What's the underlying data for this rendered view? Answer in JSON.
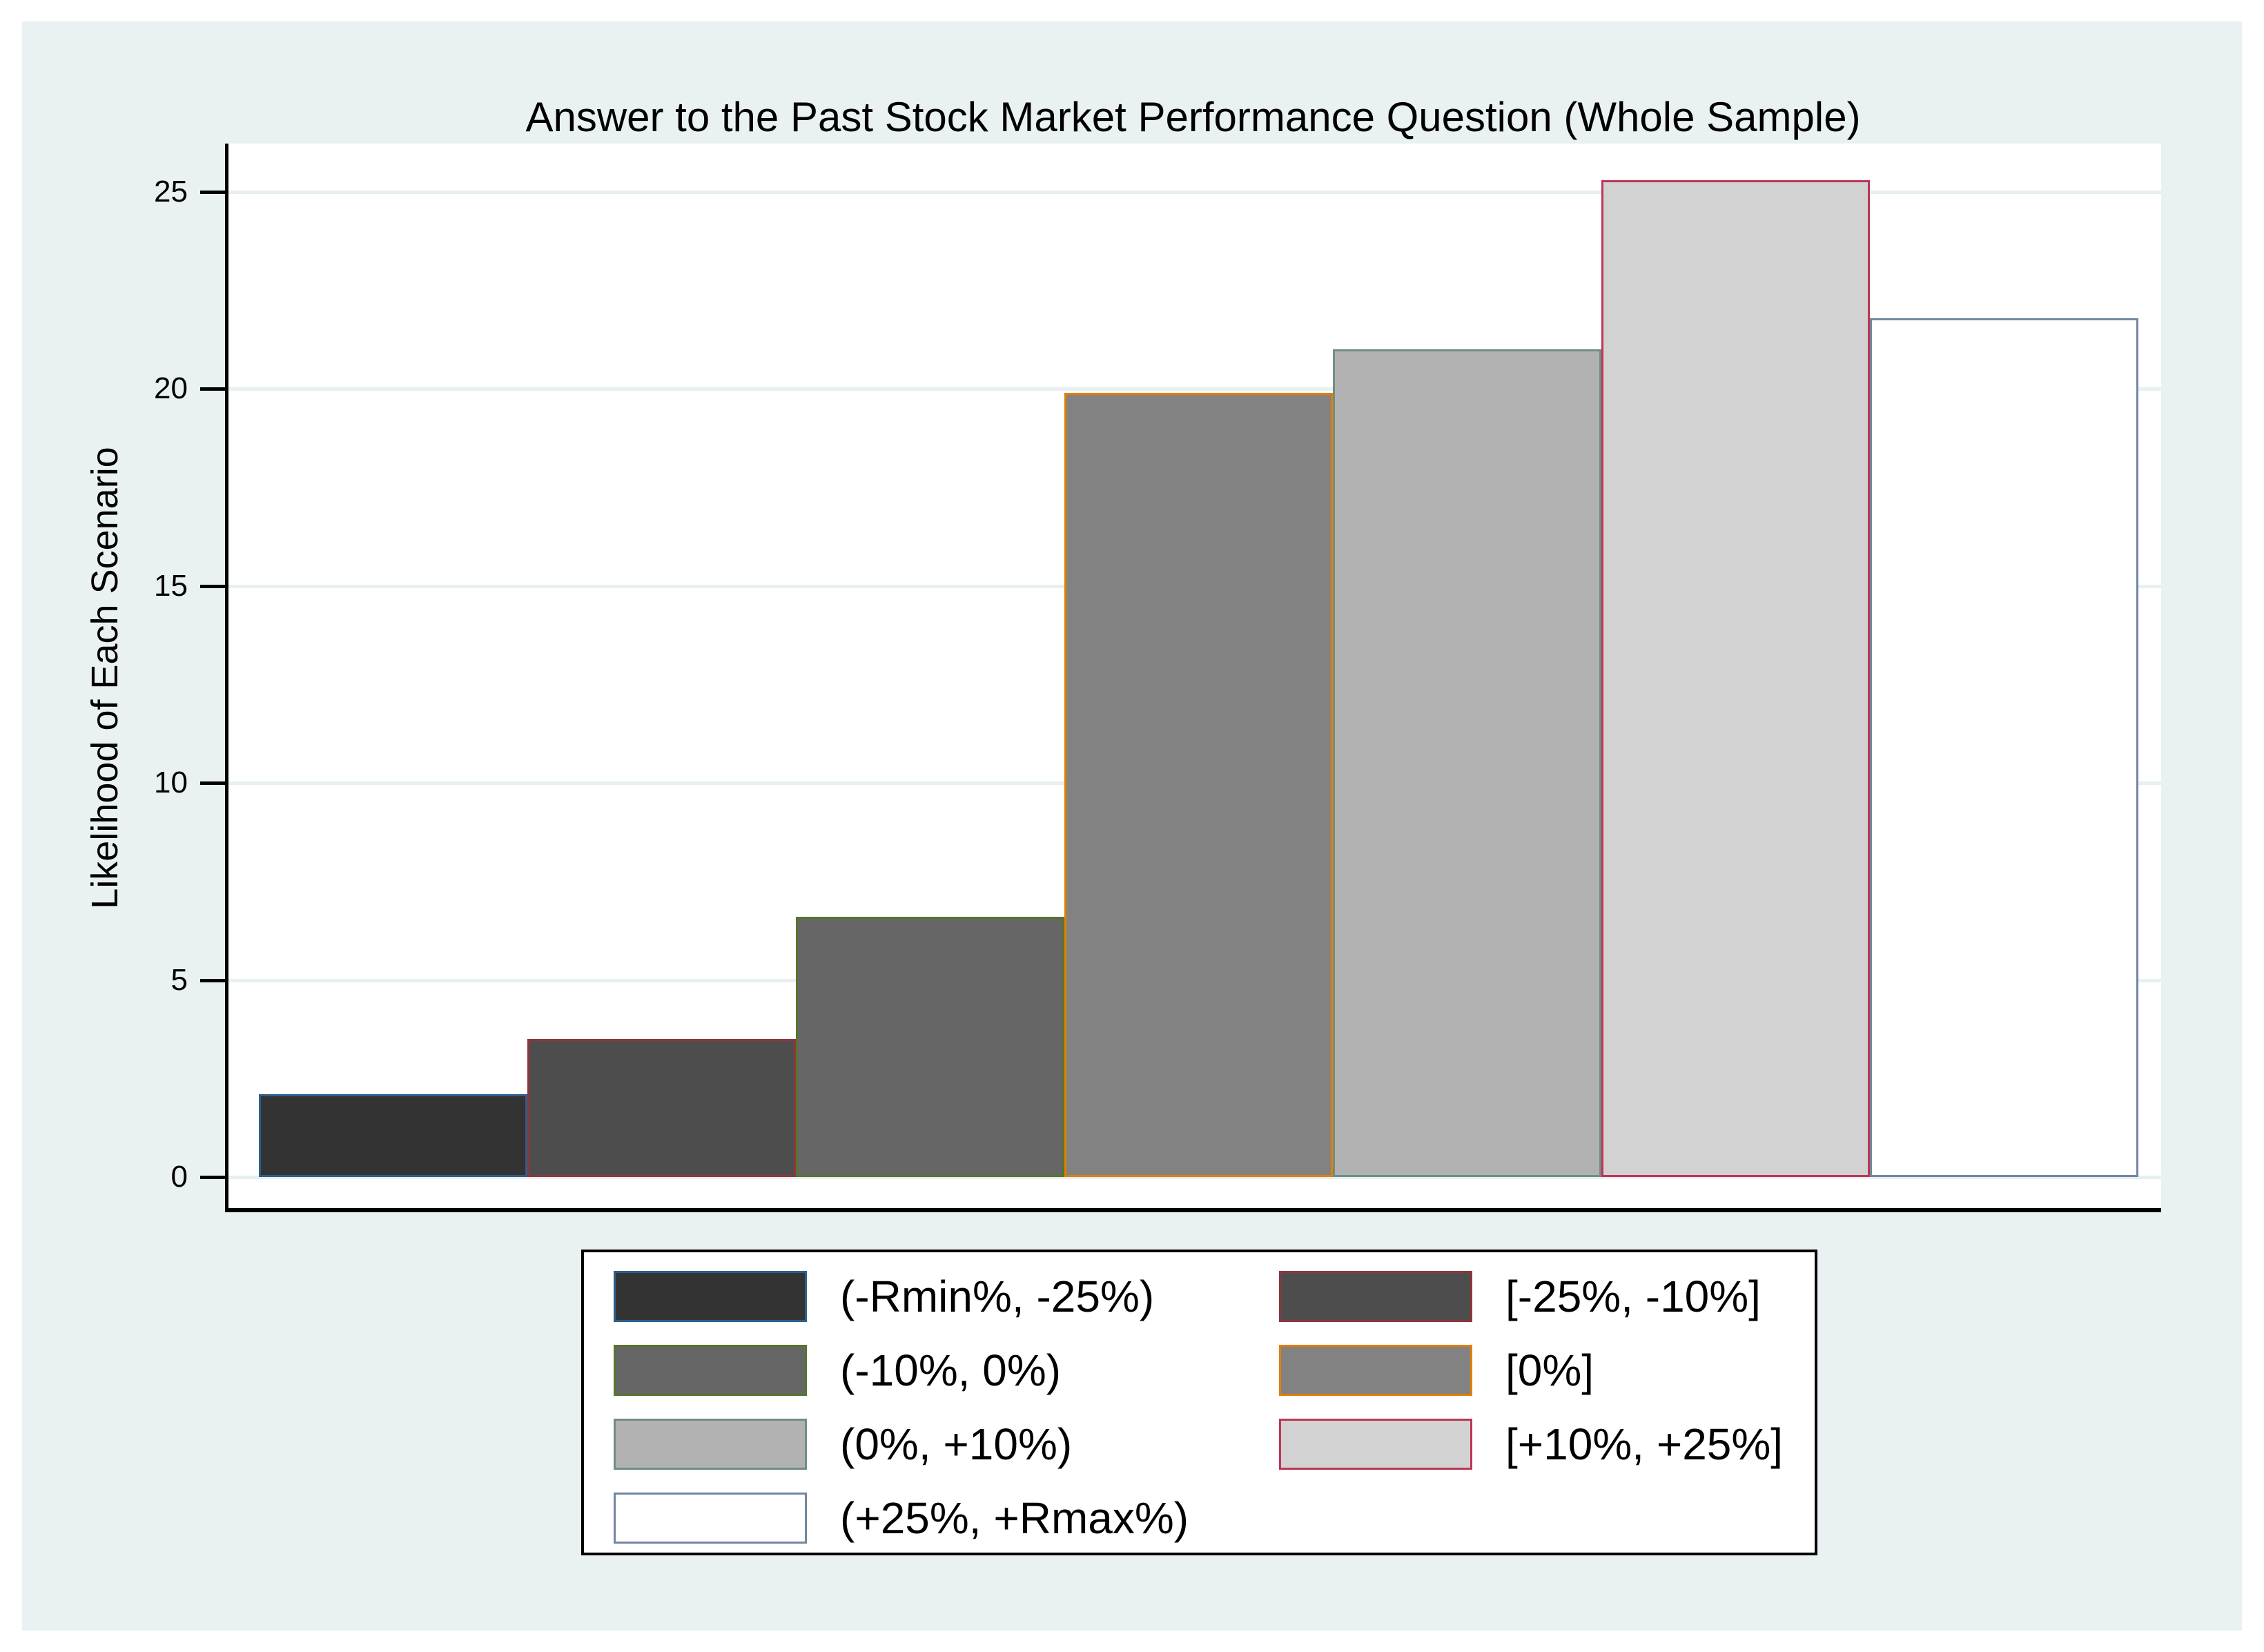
{
  "title": "Answer to the Past Stock Market Performance Question (Whole Sample)",
  "y_axis_title": "Likelihood of Each Scenario",
  "chart_data": {
    "type": "bar",
    "title": "Answer to the Past Stock Market Performance Question (Whole Sample)",
    "xlabel": "",
    "ylabel": "Likelihood of Each Scenario",
    "categories": [
      "(-Rmin%, -25%)",
      "[-25%, -10%]",
      "(-10%, 0%)",
      "[0%]",
      "(0%, +10%)",
      "[+10%, +25%]",
      "(+25%, +Rmax%)"
    ],
    "values": [
      2.1,
      3.5,
      6.6,
      19.9,
      21.0,
      25.3,
      21.8
    ],
    "bar_fills": [
      "#333333",
      "#4d4d4d",
      "#666666",
      "#828282",
      "#b2b2b2",
      "#d2d2d2",
      "#ffffff"
    ],
    "bar_outlines": [
      "#2d5e8a",
      "#90353b",
      "#55752f",
      "#e37e00",
      "#6e8e84",
      "#bf3454",
      "#71879f"
    ],
    "ylim": [
      0,
      26.2
    ],
    "yticks": [
      0,
      5,
      10,
      15,
      20,
      25
    ],
    "grid": true,
    "legend_position": "bottom"
  },
  "legend": {
    "items": [
      {
        "label": "(-Rmin%, -25%)",
        "fill": "#333333",
        "outline": "#2d5e8a"
      },
      {
        "label": "[-25%, -10%]",
        "fill": "#4d4d4d",
        "outline": "#90353b"
      },
      {
        "label": "(-10%, 0%)",
        "fill": "#666666",
        "outline": "#55752f"
      },
      {
        "label": "[0%]",
        "fill": "#828282",
        "outline": "#e37e00"
      },
      {
        "label": "(0%, +10%)",
        "fill": "#b2b2b2",
        "outline": "#6e8e84"
      },
      {
        "label": "[+10%, +25%]",
        "fill": "#d2d2d2",
        "outline": "#bf3454"
      },
      {
        "label": "(+25%, +Rmax%)",
        "fill": "#ffffff",
        "outline": "#71879f"
      }
    ]
  },
  "colors": {
    "page_background": "#ffffff",
    "figure_background": "#eaf1f3",
    "plot_background": "#ffffff",
    "gridline": "#e7f0f2",
    "axis": "#000000",
    "text": "#000000"
  }
}
